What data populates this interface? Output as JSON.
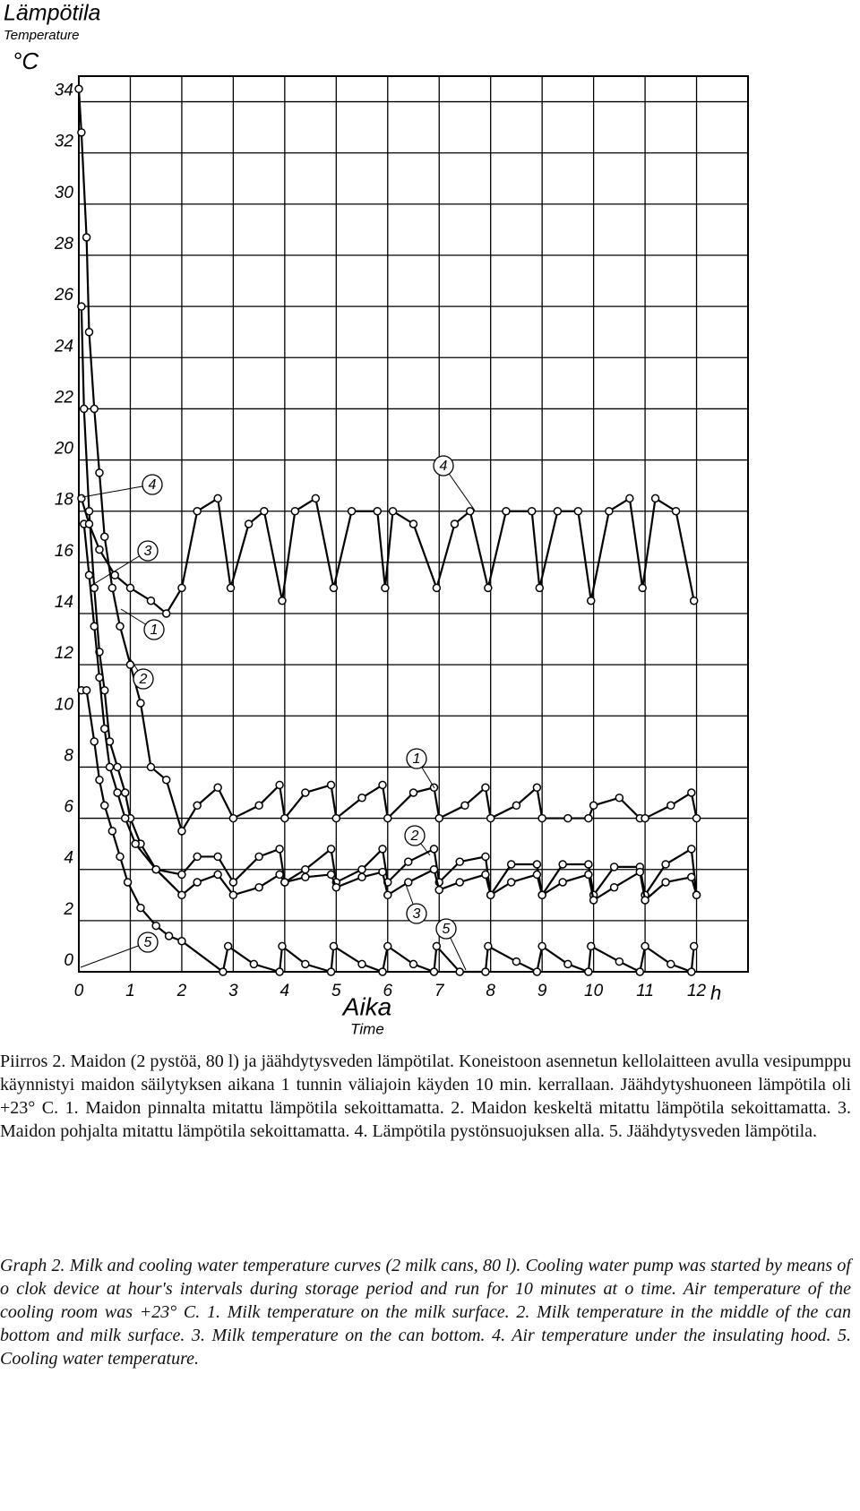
{
  "chart_data": {
    "type": "line",
    "y_label": "Lämpötila",
    "y_label_en": "Temperature",
    "y_unit": "°C",
    "x_label": "Aika",
    "x_label_en": "Time",
    "x_unit": "h",
    "xlim": [
      0,
      13
    ],
    "ylim": [
      0,
      35
    ],
    "xticks": [
      0,
      1,
      2,
      3,
      4,
      5,
      6,
      7,
      8,
      9,
      10,
      11,
      12
    ],
    "yticks": [
      0,
      2,
      4,
      6,
      8,
      10,
      12,
      14,
      16,
      18,
      20,
      22,
      24,
      26,
      28,
      30,
      32,
      34
    ],
    "grid": true,
    "series": [
      {
        "name": "1",
        "color": "#000000",
        "x": [
          0,
          0.05,
          0.15,
          0.2,
          0.3,
          0.4,
          0.5,
          0.65,
          0.8,
          1.0,
          1.2,
          1.4,
          1.7,
          2.0,
          2.3,
          2.7,
          3.0,
          3.5,
          3.9,
          4.0,
          4.4,
          4.9,
          5.0,
          5.5,
          5.9,
          6.0,
          6.5,
          6.9,
          7.0,
          7.5,
          7.9,
          8.0,
          8.5,
          8.9,
          9.0,
          9.5,
          9.9,
          10.0,
          10.5,
          10.9,
          11.0,
          11.5,
          11.9,
          12.0
        ],
        "values": [
          34.5,
          32.8,
          28.7,
          25,
          22,
          19.5,
          17,
          15,
          13.5,
          12,
          10.5,
          8,
          7.5,
          5.5,
          6.5,
          7.2,
          6,
          6.5,
          7.3,
          6,
          7,
          7.3,
          6,
          6.8,
          7.3,
          6,
          7,
          7.2,
          6,
          6.5,
          7.2,
          6,
          6.5,
          7.2,
          6,
          6,
          6,
          6.5,
          6.8,
          6,
          6,
          6.5,
          7,
          6
        ]
      },
      {
        "name": "2",
        "color": "#000000",
        "x": [
          0.05,
          0.1,
          0.2,
          0.3,
          0.4,
          0.5,
          0.6,
          0.75,
          0.9,
          1.0,
          1.2,
          1.5,
          2.0,
          2.3,
          2.7,
          3.0,
          3.5,
          3.9,
          4.0,
          4.4,
          4.9,
          5.0,
          5.5,
          5.9,
          6.0,
          6.4,
          6.9,
          7.0,
          7.4,
          7.9,
          8.0,
          8.4,
          8.9,
          9.0,
          9.4,
          9.9,
          10.0,
          10.4,
          10.9,
          11.0,
          11.4,
          11.9,
          12.0
        ],
        "values": [
          26,
          22,
          18,
          15,
          12.5,
          11,
          9,
          8,
          7,
          6,
          5,
          4,
          3.8,
          4.5,
          4.5,
          3.5,
          4.5,
          4.8,
          3.5,
          4,
          4.8,
          3.5,
          4,
          4.8,
          3.5,
          4.3,
          4.8,
          3.5,
          4.3,
          4.5,
          3,
          4.2,
          4.2,
          3,
          4.2,
          4.2,
          3,
          4.1,
          4.1,
          3,
          4.2,
          4.8,
          3
        ]
      },
      {
        "name": "3",
        "color": "#000000",
        "x": [
          0.1,
          0.2,
          0.3,
          0.4,
          0.5,
          0.6,
          0.75,
          0.9,
          1.1,
          1.5,
          2.0,
          2.3,
          2.7,
          3.0,
          3.5,
          3.9,
          4.0,
          4.4,
          4.9,
          5.0,
          5.5,
          5.9,
          6.0,
          6.4,
          6.9,
          7.0,
          7.4,
          7.9,
          8.0,
          8.4,
          8.9,
          9.0,
          9.4,
          9.9,
          10.0,
          10.4,
          10.9,
          11.0,
          11.4,
          11.9,
          12.0
        ],
        "values": [
          17.5,
          15.5,
          13.5,
          11.5,
          9.5,
          8,
          7,
          6,
          5,
          4,
          3,
          3.5,
          3.8,
          3,
          3.3,
          3.8,
          3.5,
          3.7,
          3.8,
          3.3,
          3.7,
          3.9,
          3,
          3.5,
          4,
          3.2,
          3.5,
          3.8,
          3,
          3.5,
          3.8,
          3,
          3.5,
          3.8,
          2.8,
          3.3,
          3.9,
          2.8,
          3.5,
          3.7,
          3
        ]
      },
      {
        "name": "4",
        "color": "#000000",
        "x": [
          0.05,
          0.2,
          0.4,
          0.7,
          1.0,
          1.4,
          1.7,
          2.0,
          2.3,
          2.7,
          2.95,
          3.3,
          3.6,
          3.95,
          4.2,
          4.6,
          4.95,
          5.3,
          5.8,
          5.95,
          6.1,
          6.5,
          6.95,
          7.3,
          7.6,
          7.95,
          8.3,
          8.8,
          8.95,
          9.3,
          9.7,
          9.95,
          10.3,
          10.7,
          10.95,
          11.2,
          11.6,
          11.95
        ],
        "values": [
          18.5,
          17.5,
          16.5,
          15.5,
          15,
          14.5,
          14,
          15,
          18,
          18.5,
          15,
          17.5,
          18,
          14.5,
          18,
          18.5,
          15,
          18,
          18,
          15,
          18,
          17.5,
          15,
          17.5,
          18,
          15,
          18,
          18,
          15,
          18,
          18,
          14.5,
          18,
          18.5,
          15,
          18.5,
          18,
          14.5
        ]
      },
      {
        "name": "5",
        "color": "#000000",
        "x": [
          0.05,
          0.15,
          0.3,
          0.4,
          0.5,
          0.65,
          0.8,
          0.95,
          1.2,
          1.5,
          1.75,
          2.0,
          2.8,
          2.9,
          3.4,
          3.9,
          3.95,
          4.4,
          4.9,
          4.95,
          5.5,
          5.9,
          6.0,
          6.5,
          6.9,
          6.95,
          7.4,
          7.9,
          7.95,
          8.5,
          8.9,
          9.0,
          9.5,
          9.9,
          9.95,
          10.5,
          10.9,
          11.0,
          11.5,
          11.9,
          11.95
        ],
        "values": [
          11,
          11,
          9,
          7.5,
          6.5,
          5.5,
          4.5,
          3.5,
          2.5,
          1.8,
          1.4,
          1.2,
          0,
          1,
          0.3,
          0,
          1,
          0.3,
          0,
          1,
          0.3,
          0,
          1,
          0.3,
          0,
          1,
          0,
          0,
          1,
          0.4,
          0,
          1,
          0.3,
          0,
          1,
          0.4,
          0,
          1,
          0.3,
          0,
          1
        ]
      }
    ]
  },
  "caption": {
    "fi": "Piirros 2. Maidon (2 pystöä, 80 l) ja jäähdytysveden lämpötilat. Koneistoon asennetun kellolaitteen avulla vesipumppu käynnistyi maidon säilytyksen aikana 1 tunnin väliajoin käyden 10 min. kerrallaan. Jäähdytyshuoneen lämpötila oli +23° C. 1. Maidon pinnalta mitattu lämpötila sekoittamatta. 2. Maidon keskeltä mitattu lämpötila sekoittamatta. 3. Maidon pohjalta mitattu lämpötila sekoittamatta. 4. Lämpötila pystönsuojuksen alla. 5. Jäähdytysveden lämpötila.",
    "en": "Graph 2. Milk and cooling water temperature curves (2 milk cans, 80 l). Cooling water pump was started by means of o clok device at hour's intervals during storage period and run for 10 minutes at o time. Air temperature of the cooling room was +23° C. 1. Milk temperature on the milk surface. 2. Milk temperature in the middle of the can bottom and milk surface. 3. Milk temperature on the can bottom. 4. Air temperature under the insulating hood. 5. Cooling water temperature."
  }
}
